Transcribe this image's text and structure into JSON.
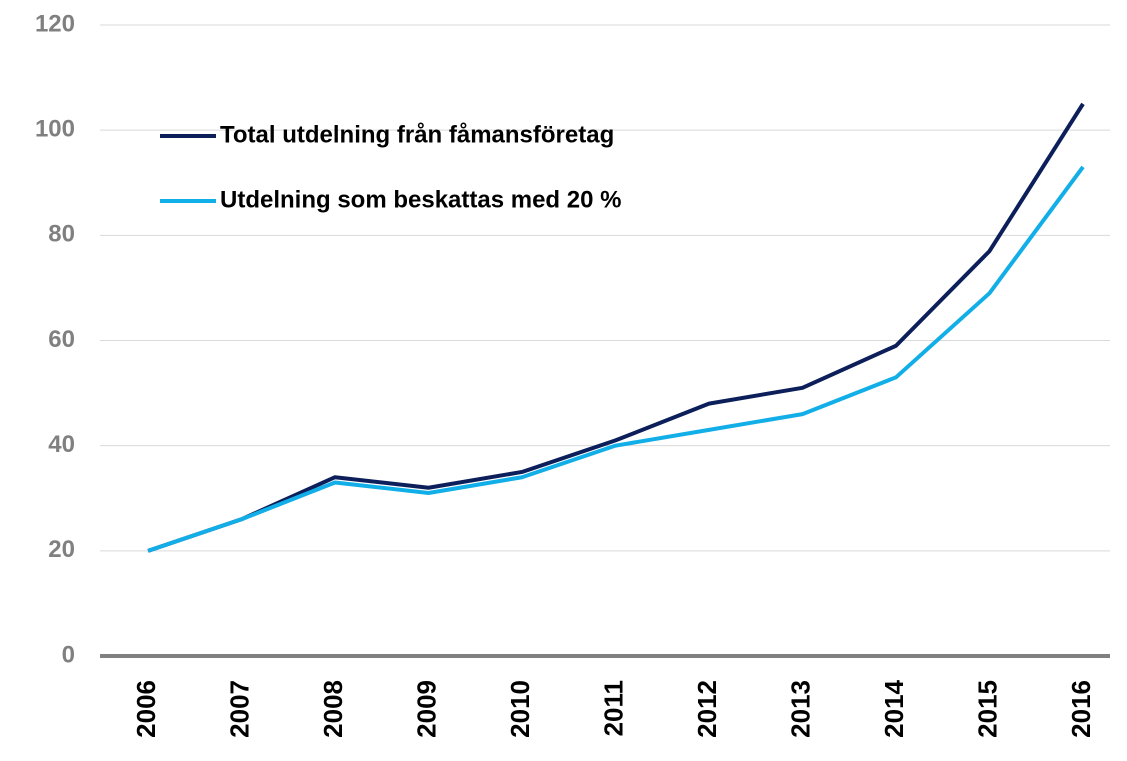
{
  "chart_data": {
    "type": "line",
    "categories": [
      "2006",
      "2007",
      "2008",
      "2009",
      "2010",
      "2011",
      "2012",
      "2013",
      "2014",
      "2015",
      "2016"
    ],
    "series": [
      {
        "name": "Total utdelning från fåmansföretag",
        "color": "#0c1f5a",
        "values": [
          20,
          26,
          34,
          32,
          35,
          41,
          48,
          51,
          59,
          77,
          105
        ]
      },
      {
        "name": "Utdelning som beskattas med 20 %",
        "color": "#12aee8",
        "values": [
          20,
          26,
          33,
          31,
          34,
          40,
          43,
          46,
          53,
          69,
          93
        ]
      }
    ],
    "ylim": [
      0,
      120
    ],
    "yticks": [
      0,
      20,
      40,
      60,
      80,
      100,
      120
    ],
    "grid": true,
    "legend": "upper left"
  }
}
